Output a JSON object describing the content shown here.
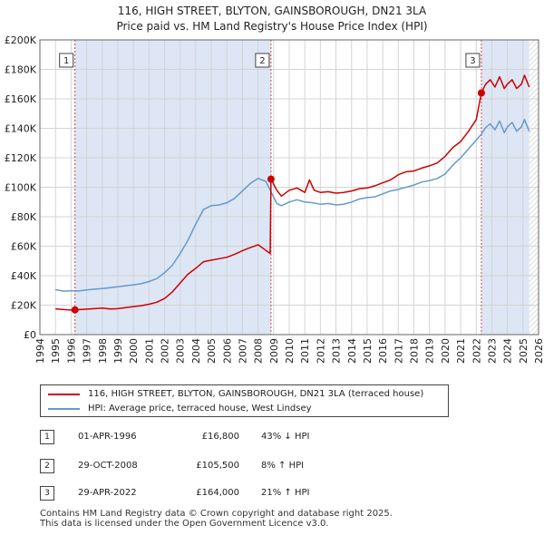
{
  "chart_data": {
    "type": "line",
    "title": "116, HIGH STREET, BLYTON, GAINSBOROUGH, DN21 3LA",
    "subtitle": "Price paid vs. HM Land Registry's House Price Index (HPI)",
    "xlabel": "",
    "ylabel": "",
    "xlim": [
      1994,
      2026
    ],
    "ylim": [
      0,
      200000
    ],
    "x_ticks": [
      "1994",
      "1995",
      "1996",
      "1997",
      "1998",
      "1999",
      "2000",
      "2001",
      "2002",
      "2003",
      "2004",
      "2005",
      "2006",
      "2007",
      "2008",
      "2009",
      "2010",
      "2011",
      "2012",
      "2013",
      "2014",
      "2015",
      "2016",
      "2017",
      "2018",
      "2019",
      "2020",
      "2021",
      "2022",
      "2023",
      "2024",
      "2025",
      "2026"
    ],
    "y_ticks": [
      {
        "value": 0,
        "label": "£0"
      },
      {
        "value": 20000,
        "label": "£20K"
      },
      {
        "value": 40000,
        "label": "£40K"
      },
      {
        "value": 60000,
        "label": "£60K"
      },
      {
        "value": 80000,
        "label": "£80K"
      },
      {
        "value": 100000,
        "label": "£100K"
      },
      {
        "value": 120000,
        "label": "£120K"
      },
      {
        "value": 140000,
        "label": "£140K"
      },
      {
        "value": 160000,
        "label": "£160K"
      },
      {
        "value": 180000,
        "label": "£180K"
      },
      {
        "value": 200000,
        "label": "£200K"
      }
    ],
    "grid": true,
    "shaded_regions": [
      {
        "from": 1996.25,
        "to": 2008.83
      },
      {
        "from": 2022.33,
        "to": 2025.4
      }
    ],
    "hatched_region": {
      "from": 2025.4,
      "to": 2026
    },
    "series": [
      {
        "name": "116, HIGH STREET, BLYTON, GAINSBOROUGH, DN21 3LA (terraced house)",
        "color": "#cc0000",
        "points": [
          [
            1995.0,
            17500
          ],
          [
            1995.5,
            17000
          ],
          [
            1996.0,
            16700
          ],
          [
            1996.25,
            16800
          ],
          [
            1996.8,
            17200
          ],
          [
            1997.5,
            17600
          ],
          [
            1998.0,
            18000
          ],
          [
            1998.5,
            17400
          ],
          [
            1999.0,
            17600
          ],
          [
            1999.5,
            18300
          ],
          [
            2000.0,
            19000
          ],
          [
            2000.5,
            19600
          ],
          [
            2001.0,
            20600
          ],
          [
            2001.5,
            22000
          ],
          [
            2002.0,
            24500
          ],
          [
            2002.5,
            29000
          ],
          [
            2003.0,
            35000
          ],
          [
            2003.5,
            41000
          ],
          [
            2004.0,
            45000
          ],
          [
            2004.5,
            49500
          ],
          [
            2005.0,
            50500
          ],
          [
            2005.5,
            51500
          ],
          [
            2006.0,
            52500
          ],
          [
            2006.5,
            54500
          ],
          [
            2007.0,
            57000
          ],
          [
            2007.5,
            59000
          ],
          [
            2008.0,
            61000
          ],
          [
            2008.4,
            58000
          ],
          [
            2008.78,
            55000
          ],
          [
            2008.83,
            105500
          ],
          [
            2009.2,
            98000
          ],
          [
            2009.5,
            94000
          ],
          [
            2010.0,
            98000
          ],
          [
            2010.5,
            99500
          ],
          [
            2011.0,
            96500
          ],
          [
            2011.3,
            105000
          ],
          [
            2011.6,
            98000
          ],
          [
            2012.0,
            96500
          ],
          [
            2012.5,
            97000
          ],
          [
            2013.0,
            96000
          ],
          [
            2013.5,
            96500
          ],
          [
            2014.0,
            97500
          ],
          [
            2014.5,
            99000
          ],
          [
            2015.0,
            99500
          ],
          [
            2015.5,
            101000
          ],
          [
            2016.0,
            103000
          ],
          [
            2016.5,
            105000
          ],
          [
            2017.0,
            108500
          ],
          [
            2017.5,
            110500
          ],
          [
            2018.0,
            111000
          ],
          [
            2018.5,
            113000
          ],
          [
            2019.0,
            114500
          ],
          [
            2019.5,
            116500
          ],
          [
            2020.0,
            121000
          ],
          [
            2020.5,
            127000
          ],
          [
            2021.0,
            131000
          ],
          [
            2021.5,
            138000
          ],
          [
            2022.0,
            146000
          ],
          [
            2022.33,
            164000
          ],
          [
            2022.6,
            170000
          ],
          [
            2022.9,
            173000
          ],
          [
            2023.2,
            168000
          ],
          [
            2023.5,
            175000
          ],
          [
            2023.8,
            167000
          ],
          [
            2024.0,
            170000
          ],
          [
            2024.3,
            173000
          ],
          [
            2024.6,
            167000
          ],
          [
            2024.9,
            170000
          ],
          [
            2025.1,
            176000
          ],
          [
            2025.4,
            168000
          ]
        ]
      },
      {
        "name": "HPI: Average price, terraced house, West Lindsey",
        "color": "#6699cc",
        "points": [
          [
            1995.0,
            30500
          ],
          [
            1995.5,
            29500
          ],
          [
            1996.0,
            29800
          ],
          [
            1996.5,
            29600
          ],
          [
            1997.0,
            30300
          ],
          [
            1997.5,
            30800
          ],
          [
            1998.0,
            31200
          ],
          [
            1998.5,
            31800
          ],
          [
            1999.0,
            32500
          ],
          [
            1999.5,
            33200
          ],
          [
            2000.0,
            33800
          ],
          [
            2000.5,
            34500
          ],
          [
            2001.0,
            36000
          ],
          [
            2001.5,
            38000
          ],
          [
            2002.0,
            42000
          ],
          [
            2002.5,
            47000
          ],
          [
            2003.0,
            55000
          ],
          [
            2003.5,
            64000
          ],
          [
            2004.0,
            75000
          ],
          [
            2004.5,
            85000
          ],
          [
            2005.0,
            87500
          ],
          [
            2005.5,
            88000
          ],
          [
            2006.0,
            89500
          ],
          [
            2006.5,
            92500
          ],
          [
            2007.0,
            97500
          ],
          [
            2007.5,
            102500
          ],
          [
            2008.0,
            106000
          ],
          [
            2008.5,
            104000
          ],
          [
            2008.83,
            97000
          ],
          [
            2009.2,
            89000
          ],
          [
            2009.5,
            87500
          ],
          [
            2010.0,
            90000
          ],
          [
            2010.5,
            91500
          ],
          [
            2011.0,
            90000
          ],
          [
            2011.5,
            89500
          ],
          [
            2012.0,
            88500
          ],
          [
            2012.5,
            89000
          ],
          [
            2013.0,
            88000
          ],
          [
            2013.5,
            88500
          ],
          [
            2014.0,
            90000
          ],
          [
            2014.5,
            92000
          ],
          [
            2015.0,
            93000
          ],
          [
            2015.5,
            93500
          ],
          [
            2016.0,
            95500
          ],
          [
            2016.5,
            97500
          ],
          [
            2017.0,
            98500
          ],
          [
            2017.5,
            100000
          ],
          [
            2018.0,
            101500
          ],
          [
            2018.5,
            103500
          ],
          [
            2019.0,
            104500
          ],
          [
            2019.5,
            106000
          ],
          [
            2020.0,
            109000
          ],
          [
            2020.5,
            115000
          ],
          [
            2021.0,
            120000
          ],
          [
            2021.5,
            126000
          ],
          [
            2022.0,
            132000
          ],
          [
            2022.33,
            136000
          ],
          [
            2022.6,
            140500
          ],
          [
            2022.9,
            143000
          ],
          [
            2023.2,
            139000
          ],
          [
            2023.5,
            145000
          ],
          [
            2023.8,
            137000
          ],
          [
            2024.0,
            141000
          ],
          [
            2024.3,
            144000
          ],
          [
            2024.6,
            138000
          ],
          [
            2024.9,
            141000
          ],
          [
            2025.1,
            146000
          ],
          [
            2025.4,
            138000
          ]
        ]
      }
    ],
    "markers": [
      {
        "label": "1",
        "x": 1996.25,
        "y": 16800
      },
      {
        "label": "2",
        "x": 2008.83,
        "y": 105500
      },
      {
        "label": "3",
        "x": 2022.33,
        "y": 164000
      }
    ]
  },
  "legend": {
    "property_label": "116, HIGH STREET, BLYTON, GAINSBOROUGH, DN21 3LA (terraced house)",
    "hpi_label": "HPI: Average price, terraced house, West Lindsey"
  },
  "sales": [
    {
      "num": "1",
      "date": "01-APR-1996",
      "price": "£16,800",
      "hpi": "43% ↓ HPI"
    },
    {
      "num": "2",
      "date": "29-OCT-2008",
      "price": "£105,500",
      "hpi": "8% ↑ HPI"
    },
    {
      "num": "3",
      "date": "29-APR-2022",
      "price": "£164,000",
      "hpi": "21% ↑ HPI"
    }
  ],
  "footer": {
    "line1": "Contains HM Land Registry data © Crown copyright and database right 2025.",
    "line2": "This data is licensed under the Open Government Licence v3.0."
  }
}
